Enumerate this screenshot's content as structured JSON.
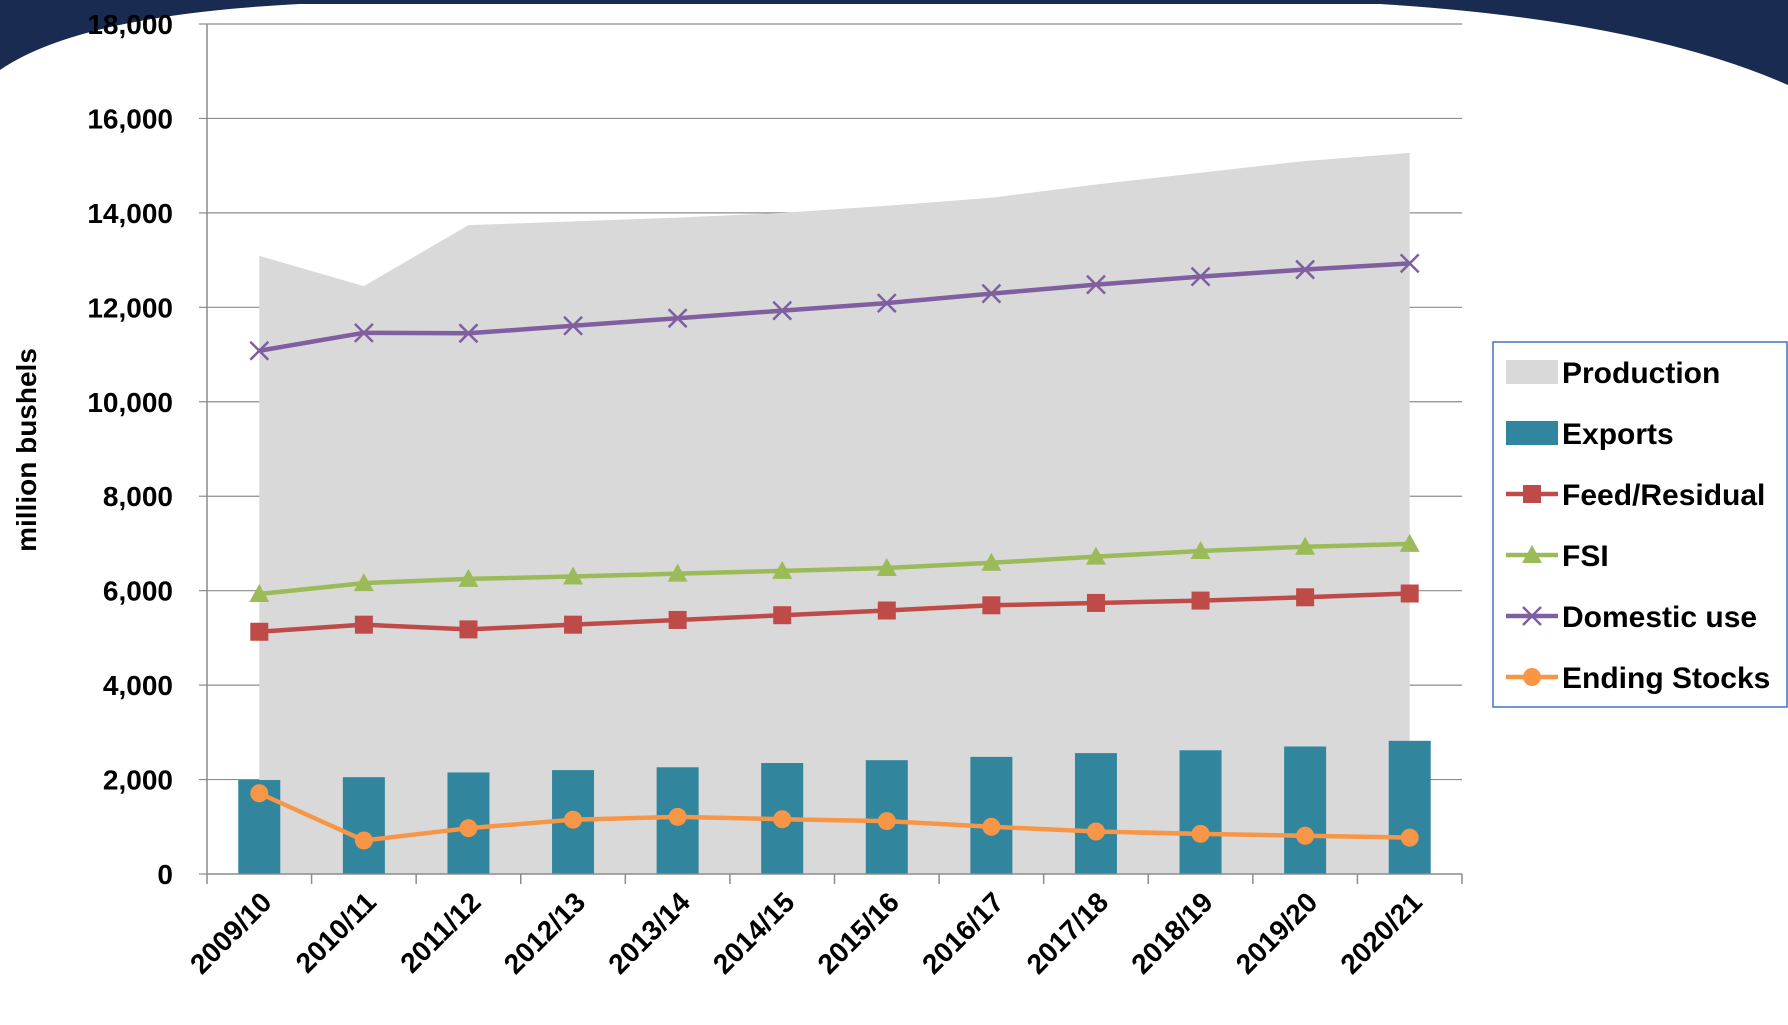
{
  "chart_data": {
    "type": "bar",
    "categories": [
      "2009/10",
      "2010/11",
      "2011/12",
      "2012/13",
      "2013/14",
      "2014/15",
      "2015/16",
      "2016/17",
      "2017/18",
      "2018/19",
      "2019/20",
      "2020/21"
    ],
    "ylabel": "million bushels",
    "ylim": [
      0,
      18000
    ],
    "yticks": [
      0,
      2000,
      4000,
      6000,
      8000,
      10000,
      12000,
      14000,
      16000,
      18000
    ],
    "ytick_labels": [
      "0",
      "2,000",
      "4,000",
      "6,000",
      "8,000",
      "10,000",
      "12,000",
      "14,000",
      "16,000",
      "18,000"
    ],
    "grid": true,
    "legend_position": "right",
    "series": [
      {
        "name": "Production",
        "kind": "area",
        "color": "#d9d9d9",
        "values": [
          13090,
          12450,
          13740,
          13820,
          13900,
          14000,
          14150,
          14320,
          14600,
          14850,
          15100,
          15270
        ]
      },
      {
        "name": "Exports",
        "kind": "bar",
        "color": "#31859c",
        "values": [
          1990,
          2050,
          2150,
          2200,
          2260,
          2350,
          2410,
          2480,
          2560,
          2620,
          2700,
          2820
        ]
      },
      {
        "name": "Feed/Residual",
        "kind": "line",
        "marker": "square",
        "color": "#be4b48",
        "values": [
          5130,
          5280,
          5180,
          5280,
          5380,
          5480,
          5580,
          5690,
          5740,
          5790,
          5860,
          5940
        ]
      },
      {
        "name": "FSI",
        "kind": "line",
        "marker": "triangle",
        "color": "#9bbb59",
        "values": [
          5930,
          6160,
          6250,
          6300,
          6360,
          6420,
          6480,
          6590,
          6720,
          6840,
          6930,
          6990
        ]
      },
      {
        "name": "Domestic use",
        "kind": "line",
        "marker": "x",
        "color": "#7f5fa0",
        "values": [
          11080,
          11460,
          11450,
          11610,
          11770,
          11930,
          12090,
          12290,
          12480,
          12650,
          12800,
          12930
        ]
      },
      {
        "name": "Ending Stocks",
        "kind": "line",
        "marker": "circle",
        "color": "#f79646",
        "values": [
          1710,
          710,
          970,
          1150,
          1210,
          1160,
          1120,
          1000,
          900,
          850,
          810,
          770
        ]
      }
    ]
  }
}
